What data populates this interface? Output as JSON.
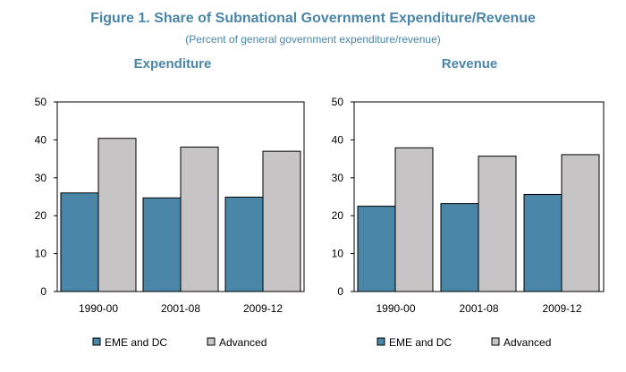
{
  "figure": {
    "title": "Figure 1. Share of Subnational Government Expenditure/Revenue",
    "subtitle": "(Percent of general government expenditure/revenue)"
  },
  "colors": {
    "title": "#4a86a8",
    "eme": "#4a86a8",
    "advanced": "#c6c4c5"
  },
  "chart_data": [
    {
      "type": "bar",
      "title": "Expenditure",
      "categories": [
        "1990-00",
        "2001-08",
        "2009-12"
      ],
      "series": [
        {
          "name": "EME and DC",
          "values": [
            26,
            24.7,
            24.9
          ]
        },
        {
          "name": "Advanced",
          "values": [
            40.4,
            38.1,
            37
          ]
        }
      ],
      "ylim": [
        0,
        50
      ],
      "yticks": [
        0,
        10,
        20,
        30,
        40,
        50
      ],
      "legend_position": "bottom"
    },
    {
      "type": "bar",
      "title": "Revenue",
      "categories": [
        "1990-00",
        "2001-08",
        "2009-12"
      ],
      "series": [
        {
          "name": "EME and DC",
          "values": [
            22.5,
            23.2,
            25.6
          ]
        },
        {
          "name": "Advanced",
          "values": [
            37.9,
            35.7,
            36.1
          ]
        }
      ],
      "ylim": [
        0,
        50
      ],
      "yticks": [
        0,
        10,
        20,
        30,
        40,
        50
      ],
      "legend_position": "bottom"
    }
  ]
}
